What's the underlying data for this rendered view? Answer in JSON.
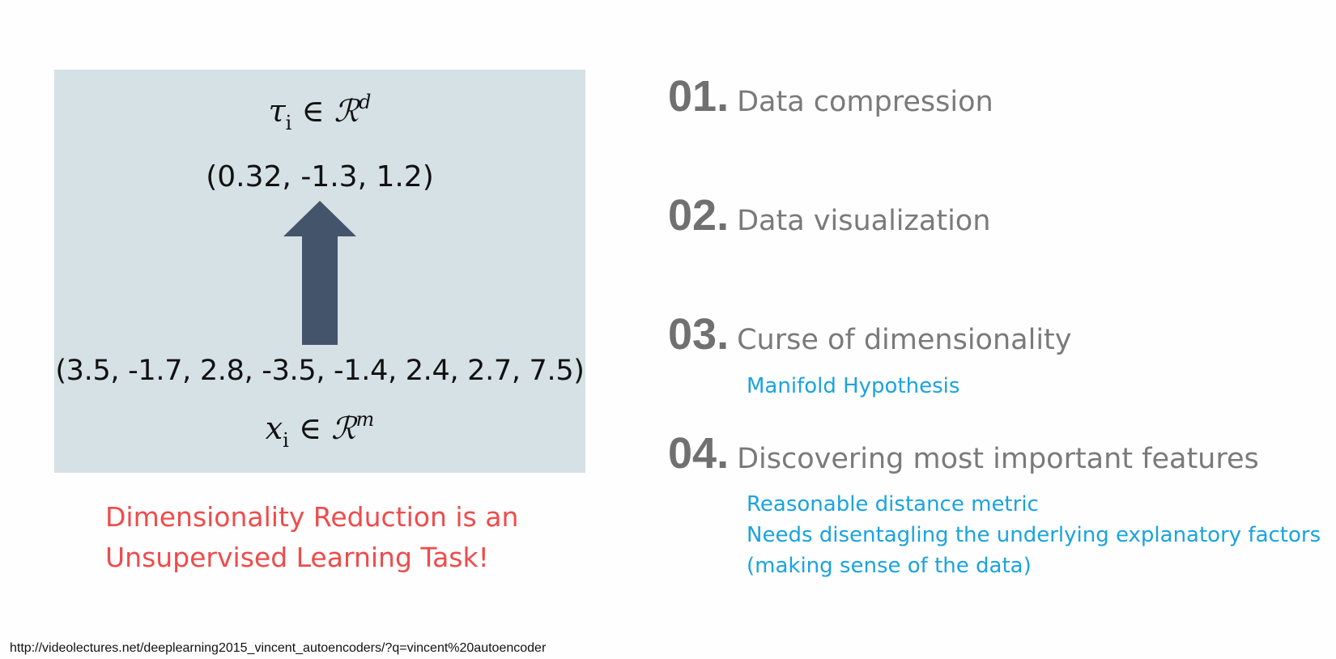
{
  "diagram": {
    "top_formula": {
      "var": "τ",
      "sub": "i",
      "in": "∈",
      "space": "ℛ",
      "sup": "d"
    },
    "top_vector": "(0.32, -1.3, 1.2)",
    "bottom_vector": "(3.5, -1.7, 2.8, -3.5, -1.4, 2.4, 2.7, 7.5)",
    "bottom_formula": {
      "var": "x",
      "sub": "i",
      "in": "∈",
      "space": "ℛ",
      "sup": "m"
    },
    "arrow_icon": "up-arrow-icon",
    "background_color": "#d6e1e5",
    "arrow_color": "#44546a"
  },
  "caption": {
    "line1": "Dimensionality Reduction is an",
    "line2": "Unsupervised Learning Task!",
    "color": "#f04b4b"
  },
  "list": {
    "items": [
      {
        "num": "01.",
        "label": "Data compression"
      },
      {
        "num": "02.",
        "label": "Data visualization"
      },
      {
        "num": "03.",
        "label": "Curse of dimensionality"
      },
      {
        "num": "04.",
        "label": "Discovering most important features"
      }
    ],
    "notes": {
      "item3": [
        "Manifold Hypothesis"
      ],
      "item4": [
        "Reasonable distance metric",
        "Needs disentagling the underlying explanatory factors",
        "(making sense of the data)"
      ]
    },
    "note_color": "#1aa3e0"
  },
  "footer": {
    "url": "http://videolectures.net/deeplearning2015_vincent_autoencoders/?q=vincent%20autoencoder"
  }
}
